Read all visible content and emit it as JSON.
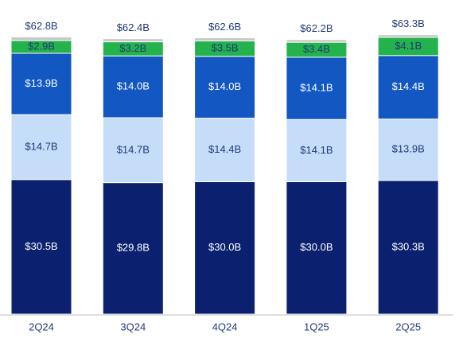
{
  "chart_data": {
    "type": "stacked-bar",
    "categories": [
      "2Q24",
      "3Q24",
      "4Q24",
      "1Q25",
      "2Q25"
    ],
    "series": [
      {
        "color": "#0b2170",
        "label_color": "#ffffff",
        "values": [
          30.5,
          29.8,
          30.0,
          30.0,
          30.3
        ],
        "value_labels": [
          "$30.5B",
          "$29.8B",
          "$30.0B",
          "$30.0B",
          "$30.3B"
        ]
      },
      {
        "color": "#c6ddfa",
        "label_color": "#1f3a7a",
        "values": [
          14.7,
          14.7,
          14.4,
          14.1,
          13.9
        ],
        "value_labels": [
          "$14.7B",
          "$14.7B",
          "$14.4B",
          "$14.1B",
          "$13.9B"
        ]
      },
      {
        "color": "#1257c2",
        "label_color": "#ffffff",
        "values": [
          13.9,
          14.0,
          14.0,
          14.1,
          14.4
        ],
        "value_labels": [
          "$13.9B",
          "$14.0B",
          "$14.0B",
          "$14.1B",
          "$14.4B"
        ]
      },
      {
        "color": "#23b24b",
        "label_color": "#1f3a7a",
        "values": [
          2.9,
          3.2,
          3.5,
          3.4,
          4.1
        ],
        "value_labels": [
          "$2.9B",
          "$3.2B",
          "$3.5B",
          "$3.4B",
          "$4.1B"
        ]
      },
      {
        "color": "#c8c8c8",
        "values": [
          0.8,
          0.7,
          0.7,
          0.6,
          0.6
        ]
      }
    ],
    "totals": {
      "values": [
        62.8,
        62.4,
        62.6,
        62.2,
        63.3
      ],
      "value_labels": [
        "$62.8B",
        "$62.4B",
        "$62.6B",
        "$62.2B",
        "$63.3B"
      ]
    }
  }
}
